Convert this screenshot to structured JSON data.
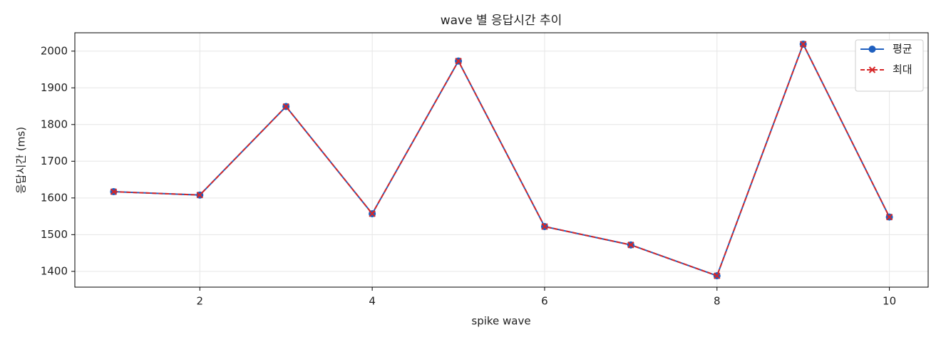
{
  "chart_data": {
    "type": "line",
    "title": "wave 별 응답시간 추이",
    "x_label": "spike wave",
    "y_label": "응답시간 (ms)",
    "x": [
      1,
      2,
      3,
      4,
      5,
      6,
      7,
      8,
      9,
      10
    ],
    "series": [
      {
        "name": "평균",
        "color": "#1f5fbf",
        "linestyle": "solid",
        "marker": "o",
        "values": [
          1617,
          1608,
          1849,
          1557,
          1973,
          1522,
          1472,
          1388,
          2019,
          1548
        ]
      },
      {
        "name": "최대",
        "color": "#d62728",
        "linestyle": "dashed",
        "marker": "x",
        "values": [
          1617,
          1608,
          1849,
          1557,
          1973,
          1522,
          1472,
          1388,
          2019,
          1548
        ]
      }
    ],
    "xlim": [
      0.55,
      10.45
    ],
    "xticks": [
      2,
      4,
      6,
      8,
      10
    ],
    "ylim": [
      1357,
      2050
    ],
    "yticks": [
      1400,
      1500,
      1600,
      1700,
      1800,
      1900,
      2000
    ],
    "grid": true,
    "legend": "upper right"
  }
}
